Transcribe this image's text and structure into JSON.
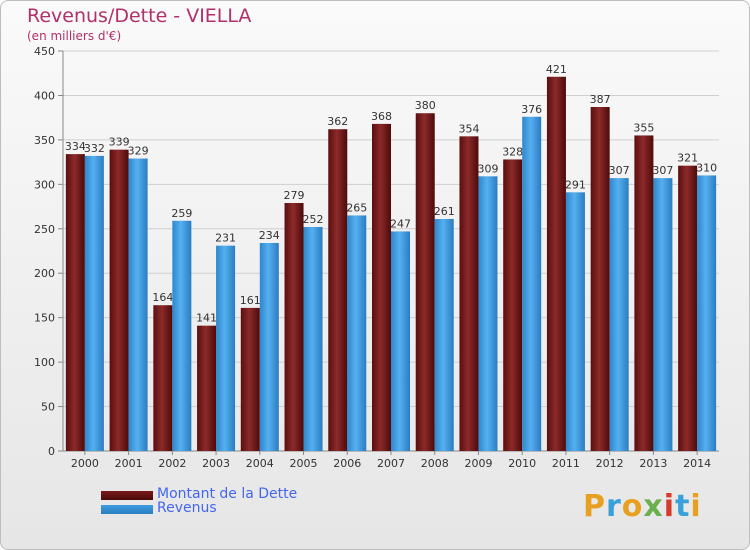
{
  "header": {
    "title": "Revenus/Dette - VIELLA",
    "subtitle": "(en milliers d'€)"
  },
  "brand": {
    "logo_text": "Proxiti",
    "logo_colors": [
      "#e8a020",
      "#39a0d8",
      "#e8a020",
      "#6ab04c",
      "#d63a2a",
      "#39a0d8",
      "#e8a020"
    ]
  },
  "colors": {
    "dette": "#7a1a1a",
    "revenus": "#3e9be0",
    "title": "#b0306a",
    "legend_text": "#4466ee"
  },
  "chart_data": {
    "type": "bar",
    "categories": [
      "2000",
      "2001",
      "2002",
      "2003",
      "2004",
      "2005",
      "2006",
      "2007",
      "2008",
      "2009",
      "2010",
      "2011",
      "2012",
      "2013",
      "2014"
    ],
    "series": [
      {
        "name": "Montant de la Dette",
        "values": [
          334,
          339,
          164,
          141,
          161,
          279,
          362,
          368,
          380,
          354,
          328,
          421,
          387,
          355,
          321
        ]
      },
      {
        "name": "Revenus",
        "values": [
          332,
          329,
          259,
          231,
          234,
          252,
          265,
          247,
          261,
          309,
          376,
          291,
          307,
          307,
          310
        ]
      }
    ],
    "y_ticks": [
      0,
      50,
      100,
      150,
      200,
      250,
      300,
      350,
      400,
      450
    ],
    "ylim": [
      0,
      450
    ],
    "grid": true,
    "legend": "bottom-left"
  }
}
